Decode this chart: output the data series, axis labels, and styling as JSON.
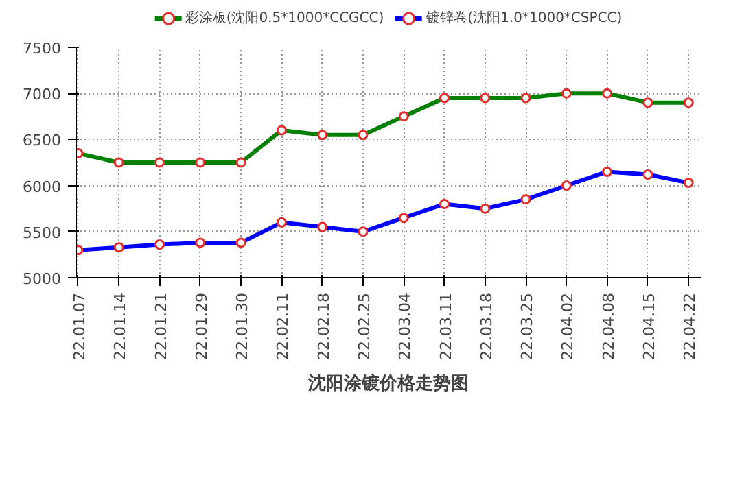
{
  "chart_data": {
    "type": "line",
    "title": "沈阳涂镀价格走势图",
    "categories": [
      "22.01.07",
      "22.01.14",
      "22.01.21",
      "22.01.29",
      "22.01.30",
      "22.02.11",
      "22.02.18",
      "22.02.25",
      "22.03.04",
      "22.03.11",
      "22.03.18",
      "22.03.25",
      "22.04.02",
      "22.04.08",
      "22.04.15",
      "22.04.22"
    ],
    "series": [
      {
        "name": "彩涂板(沈阳0.5*1000*CCGCC)",
        "color": "#008000",
        "values": [
          6350,
          6250,
          6250,
          6250,
          6250,
          6600,
          6550,
          6550,
          6750,
          6950,
          6950,
          6950,
          7000,
          7000,
          6900,
          6900
        ]
      },
      {
        "name": "镀锌卷(沈阳1.0*1000*CSPCC)",
        "color": "#0000ff",
        "values": [
          5300,
          5330,
          5360,
          5380,
          5380,
          5600,
          5550,
          5500,
          5650,
          5800,
          5750,
          5850,
          6000,
          6150,
          6120,
          6030
        ]
      }
    ],
    "ylim": [
      5000,
      7500
    ],
    "yticks": [
      5000,
      5500,
      6000,
      6500,
      7000,
      7500
    ],
    "grid": true,
    "legend": "top",
    "marker": "circle",
    "line_style": "solid"
  }
}
